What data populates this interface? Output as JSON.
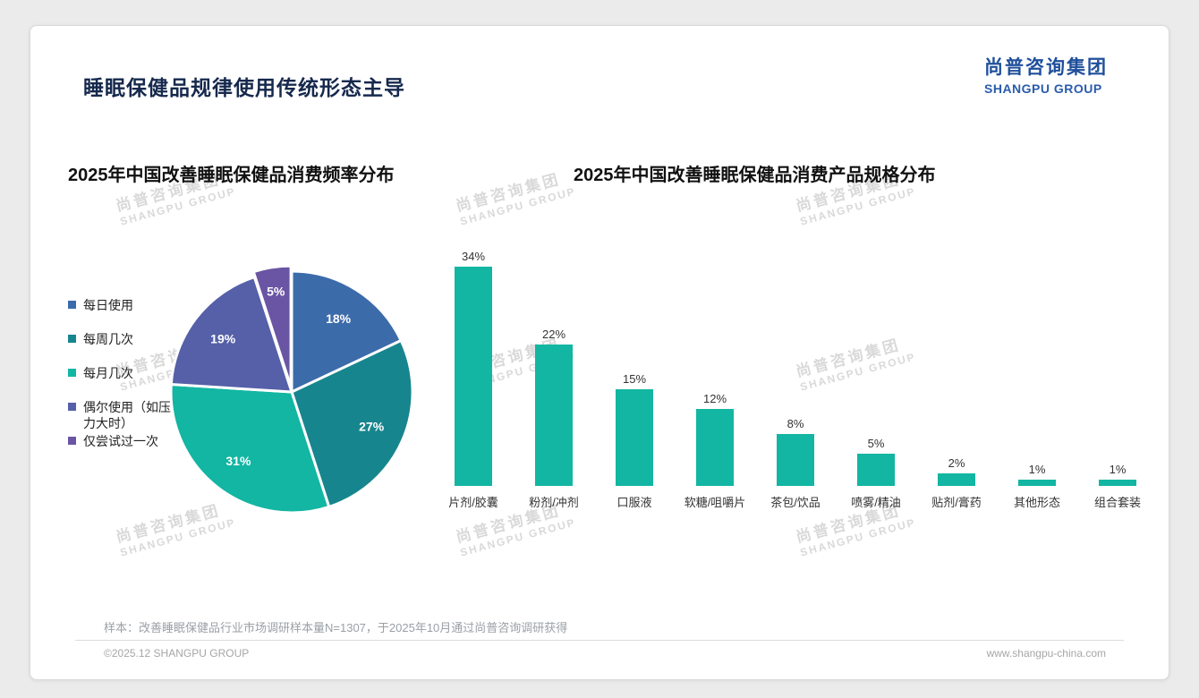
{
  "page": {
    "title": "睡眠保健品规律使用传统形态主导",
    "logo": {
      "cn": "尚普咨询集团",
      "en": "SHANGPU GROUP"
    }
  },
  "watermark": {
    "line1": "尚普咨询集团",
    "line2": "SHANGPU GROUP"
  },
  "chart_data": [
    {
      "type": "pie",
      "title": "2025年中国改善睡眠保健品消费频率分布",
      "labels": [
        "每日使用",
        "每周几次",
        "每月几次",
        "偶尔使用（如压力大时）",
        "仅尝试过一次"
      ],
      "values": [
        18,
        27,
        31,
        19,
        5
      ],
      "unit": "%",
      "colors": [
        "#3c6baa",
        "#17858e",
        "#12b6a2",
        "#5560a8",
        "#6a55a4"
      ],
      "legend_position": "left",
      "start_angle": "top",
      "direction": "clockwise"
    },
    {
      "type": "bar",
      "title": "2025年中国改善睡眠保健品消费产品规格分布",
      "categories": [
        "片剂/胶囊",
        "粉剂/冲剂",
        "口服液",
        "软糖/咀嚼片",
        "茶包/饮品",
        "喷雾/精油",
        "贴剂/膏药",
        "其他形态",
        "组合套装"
      ],
      "values": [
        34,
        22,
        15,
        12,
        8,
        5,
        2,
        1,
        1
      ],
      "unit": "%",
      "bar_color": "#12b6a2",
      "ylim": [
        0,
        36
      ],
      "grid": false,
      "value_labels": "above bars"
    }
  ],
  "footer": {
    "note": "样本：改善睡眠保健品行业市场调研样本量N=1307，于2025年10月通过尚普咨询调研获得",
    "copyright": "©2025.12 SHANGPU GROUP",
    "website": "www.shangpu-china.com"
  }
}
